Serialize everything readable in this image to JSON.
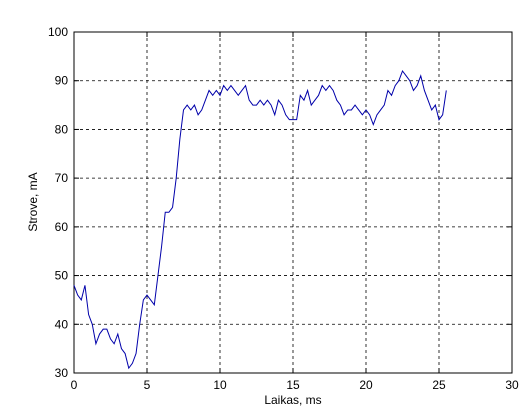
{
  "chart_data": {
    "type": "line",
    "xlabel": "Laikas, ms",
    "ylabel": "Strove, mA",
    "x": [
      0,
      0.25,
      0.5,
      0.75,
      1,
      1.25,
      1.5,
      1.75,
      2,
      2.25,
      2.5,
      2.75,
      3,
      3.25,
      3.5,
      3.75,
      4,
      4.25,
      4.5,
      4.75,
      5,
      5.25,
      5.5,
      5.75,
      6,
      6.25,
      6.5,
      6.75,
      7,
      7.25,
      7.5,
      7.75,
      8,
      8.25,
      8.5,
      8.75,
      9,
      9.25,
      9.5,
      9.75,
      10,
      10.25,
      10.5,
      10.75,
      11,
      11.25,
      11.5,
      11.75,
      12,
      12.25,
      12.5,
      12.75,
      13,
      13.25,
      13.5,
      13.75,
      14,
      14.25,
      14.5,
      14.75,
      15,
      15.25,
      15.5,
      15.75,
      16,
      16.25,
      16.5,
      16.75,
      17,
      17.25,
      17.5,
      17.75,
      18,
      18.25,
      18.5,
      18.75,
      19,
      19.25,
      19.5,
      19.75,
      20,
      20.25,
      20.5,
      20.75,
      21,
      21.25,
      21.5,
      21.75,
      22,
      22.25,
      22.5,
      22.75,
      23,
      23.25,
      23.5,
      23.75,
      24,
      24.25,
      24.5,
      24.75,
      25,
      25.25,
      25.5
    ],
    "series": [
      {
        "color": "#0000aa",
        "values": [
          48,
          46,
          45,
          48,
          42,
          40,
          36,
          38,
          39,
          39,
          37,
          36,
          38,
          35,
          34,
          31,
          32,
          34,
          40,
          45,
          46,
          45,
          44,
          50,
          56,
          63,
          63,
          64,
          70,
          78,
          84,
          85,
          84,
          85,
          83,
          84,
          86,
          88,
          87,
          88,
          87,
          89,
          88,
          89,
          88,
          87,
          88,
          89,
          86,
          85,
          85,
          86,
          85,
          86,
          85,
          83,
          86,
          85,
          83,
          82,
          82,
          82,
          87,
          86,
          88,
          85,
          86,
          87,
          89,
          88,
          89,
          88,
          86,
          85,
          83,
          84,
          84,
          85,
          84,
          83,
          84,
          83,
          81,
          83,
          84,
          85,
          88,
          87,
          89,
          90,
          92,
          91,
          90,
          88,
          89,
          91,
          88,
          86,
          84,
          85,
          82,
          83,
          88
        ]
      }
    ],
    "xlim": [
      0,
      30
    ],
    "xticks": [
      0,
      5,
      10,
      15,
      20,
      25,
      30
    ],
    "ylim": [
      30,
      100
    ],
    "yticks": [
      30,
      40,
      50,
      60,
      70,
      80,
      90,
      100
    ],
    "grid": true
  }
}
